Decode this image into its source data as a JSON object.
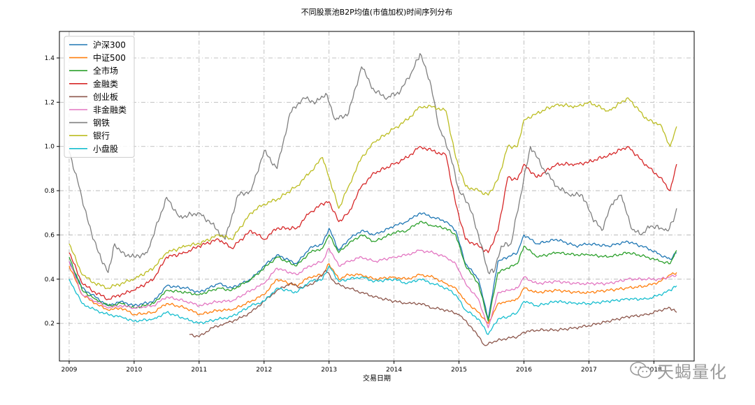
{
  "chart_data": {
    "type": "line",
    "title": "不同股票池B2P均值(市值加权)时间序列分布",
    "xlabel": "交易日期",
    "ylabel": "",
    "xlim": [
      2008.85,
      2018.62
    ],
    "ylim": [
      0.03,
      1.52
    ],
    "x_ticks": [
      "2009",
      "2010",
      "2011",
      "2012",
      "2013",
      "2014",
      "2015",
      "2016",
      "2017",
      "2018"
    ],
    "y_ticks": [
      "0.2",
      "0.4",
      "0.6",
      "0.8",
      "1.0",
      "1.2",
      "1.4"
    ],
    "grid": true,
    "legend_position": "upper left",
    "series": [
      {
        "name": "沪深300",
        "color": "#1f77b4",
        "x": [
          2009.0,
          2009.2,
          2009.4,
          2009.6,
          2009.8,
          2010.0,
          2010.3,
          2010.5,
          2010.8,
          2011.0,
          2011.3,
          2011.5,
          2011.8,
          2012.0,
          2012.2,
          2012.5,
          2012.7,
          2012.9,
          2013.0,
          2013.15,
          2013.3,
          2013.5,
          2013.7,
          2014.0,
          2014.2,
          2014.4,
          2014.6,
          2014.8,
          2014.95,
          2015.1,
          2015.3,
          2015.45,
          2015.6,
          2015.75,
          2015.9,
          2016.0,
          2016.2,
          2016.5,
          2016.8,
          2017.0,
          2017.3,
          2017.6,
          2017.9,
          2018.1,
          2018.25,
          2018.35
        ],
        "values": [
          0.48,
          0.36,
          0.32,
          0.28,
          0.3,
          0.28,
          0.3,
          0.37,
          0.36,
          0.34,
          0.38,
          0.36,
          0.4,
          0.46,
          0.51,
          0.47,
          0.54,
          0.56,
          0.63,
          0.53,
          0.58,
          0.62,
          0.6,
          0.64,
          0.66,
          0.7,
          0.68,
          0.66,
          0.62,
          0.47,
          0.4,
          0.22,
          0.48,
          0.5,
          0.52,
          0.6,
          0.56,
          0.58,
          0.55,
          0.56,
          0.55,
          0.57,
          0.54,
          0.51,
          0.49,
          0.52
        ]
      },
      {
        "name": "中证500",
        "color": "#ff7f0e",
        "x": [
          2009.0,
          2009.2,
          2009.4,
          2009.6,
          2009.8,
          2010.0,
          2010.3,
          2010.5,
          2010.8,
          2011.0,
          2011.3,
          2011.5,
          2011.8,
          2012.0,
          2012.2,
          2012.5,
          2012.7,
          2012.9,
          2013.0,
          2013.15,
          2013.3,
          2013.5,
          2013.7,
          2014.0,
          2014.2,
          2014.4,
          2014.6,
          2014.8,
          2014.95,
          2015.1,
          2015.3,
          2015.45,
          2015.6,
          2015.75,
          2015.9,
          2016.0,
          2016.2,
          2016.5,
          2016.8,
          2017.0,
          2017.3,
          2017.6,
          2017.9,
          2018.1,
          2018.25,
          2018.35
        ],
        "values": [
          0.46,
          0.33,
          0.29,
          0.26,
          0.27,
          0.24,
          0.25,
          0.29,
          0.27,
          0.24,
          0.26,
          0.26,
          0.3,
          0.33,
          0.4,
          0.37,
          0.41,
          0.42,
          0.47,
          0.4,
          0.42,
          0.42,
          0.4,
          0.41,
          0.4,
          0.42,
          0.41,
          0.38,
          0.36,
          0.3,
          0.25,
          0.2,
          0.29,
          0.3,
          0.31,
          0.36,
          0.34,
          0.35,
          0.34,
          0.34,
          0.35,
          0.36,
          0.37,
          0.39,
          0.42,
          0.43
        ]
      },
      {
        "name": "全市场",
        "color": "#2ca02c",
        "x": [
          2009.0,
          2009.2,
          2009.4,
          2009.6,
          2009.8,
          2010.0,
          2010.3,
          2010.5,
          2010.8,
          2011.0,
          2011.3,
          2011.5,
          2011.8,
          2012.0,
          2012.2,
          2012.5,
          2012.7,
          2012.9,
          2013.0,
          2013.15,
          2013.3,
          2013.5,
          2013.7,
          2014.0,
          2014.2,
          2014.4,
          2014.6,
          2014.8,
          2014.95,
          2015.1,
          2015.3,
          2015.45,
          2015.6,
          2015.75,
          2015.9,
          2016.0,
          2016.2,
          2016.5,
          2016.8,
          2017.0,
          2017.3,
          2017.6,
          2017.9,
          2018.1,
          2018.25,
          2018.35
        ],
        "values": [
          0.5,
          0.35,
          0.31,
          0.28,
          0.29,
          0.27,
          0.29,
          0.35,
          0.34,
          0.33,
          0.36,
          0.35,
          0.4,
          0.45,
          0.5,
          0.46,
          0.52,
          0.54,
          0.6,
          0.52,
          0.56,
          0.6,
          0.57,
          0.61,
          0.62,
          0.66,
          0.64,
          0.63,
          0.6,
          0.46,
          0.38,
          0.21,
          0.43,
          0.45,
          0.47,
          0.55,
          0.5,
          0.52,
          0.51,
          0.51,
          0.5,
          0.52,
          0.5,
          0.48,
          0.47,
          0.53
        ]
      },
      {
        "name": "金融类",
        "color": "#d62728",
        "x": [
          2009.0,
          2009.2,
          2009.4,
          2009.6,
          2009.8,
          2010.0,
          2010.3,
          2010.5,
          2010.8,
          2011.0,
          2011.3,
          2011.5,
          2011.8,
          2012.0,
          2012.2,
          2012.5,
          2012.7,
          2012.9,
          2013.0,
          2013.15,
          2013.3,
          2013.5,
          2013.7,
          2014.0,
          2014.2,
          2014.4,
          2014.6,
          2014.8,
          2014.95,
          2015.1,
          2015.3,
          2015.45,
          2015.6,
          2015.75,
          2015.9,
          2016.0,
          2016.2,
          2016.5,
          2016.8,
          2017.0,
          2017.3,
          2017.6,
          2017.9,
          2018.1,
          2018.25,
          2018.35
        ],
        "values": [
          0.52,
          0.38,
          0.34,
          0.31,
          0.33,
          0.35,
          0.4,
          0.5,
          0.52,
          0.55,
          0.58,
          0.54,
          0.62,
          0.58,
          0.63,
          0.63,
          0.7,
          0.74,
          0.75,
          0.66,
          0.7,
          0.82,
          0.88,
          0.92,
          0.95,
          1.0,
          0.98,
          0.96,
          0.74,
          0.58,
          0.55,
          0.52,
          0.62,
          0.86,
          0.85,
          0.92,
          0.86,
          0.92,
          0.92,
          0.93,
          0.96,
          1.0,
          0.91,
          0.86,
          0.8,
          0.92
        ]
      },
      {
        "name": "创业板",
        "color": "#8c564b",
        "x": [
          2010.85,
          2011.0,
          2011.2,
          2011.4,
          2011.6,
          2011.8,
          2012.0,
          2012.2,
          2012.4,
          2012.6,
          2012.8,
          2012.95,
          2013.1,
          2013.3,
          2013.5,
          2013.7,
          2014.0,
          2014.2,
          2014.4,
          2014.6,
          2014.8,
          2015.0,
          2015.2,
          2015.4,
          2015.55,
          2015.7,
          2015.9,
          2016.0,
          2016.2,
          2016.5,
          2016.8,
          2017.0,
          2017.3,
          2017.6,
          2017.9,
          2018.1,
          2018.25,
          2018.35
        ],
        "values": [
          0.15,
          0.14,
          0.18,
          0.2,
          0.22,
          0.25,
          0.3,
          0.35,
          0.38,
          0.36,
          0.39,
          0.44,
          0.38,
          0.36,
          0.34,
          0.32,
          0.3,
          0.29,
          0.29,
          0.27,
          0.26,
          0.24,
          0.18,
          0.1,
          0.12,
          0.13,
          0.14,
          0.16,
          0.17,
          0.17,
          0.18,
          0.19,
          0.21,
          0.23,
          0.24,
          0.26,
          0.27,
          0.25
        ]
      },
      {
        "name": "非金融类",
        "color": "#e377c2",
        "x": [
          2009.0,
          2009.2,
          2009.4,
          2009.6,
          2009.8,
          2010.0,
          2010.3,
          2010.5,
          2010.8,
          2011.0,
          2011.3,
          2011.5,
          2011.8,
          2012.0,
          2012.2,
          2012.5,
          2012.7,
          2012.9,
          2013.0,
          2013.15,
          2013.3,
          2013.5,
          2013.7,
          2014.0,
          2014.2,
          2014.4,
          2014.6,
          2014.8,
          2014.95,
          2015.1,
          2015.3,
          2015.45,
          2015.6,
          2015.75,
          2015.9,
          2016.0,
          2016.2,
          2016.5,
          2016.8,
          2017.0,
          2017.3,
          2017.6,
          2017.9,
          2018.1,
          2018.25,
          2018.35
        ],
        "values": [
          0.48,
          0.33,
          0.3,
          0.27,
          0.28,
          0.27,
          0.28,
          0.32,
          0.3,
          0.28,
          0.3,
          0.3,
          0.35,
          0.38,
          0.45,
          0.42,
          0.46,
          0.48,
          0.54,
          0.46,
          0.48,
          0.5,
          0.48,
          0.5,
          0.51,
          0.53,
          0.52,
          0.5,
          0.47,
          0.38,
          0.31,
          0.18,
          0.34,
          0.35,
          0.36,
          0.41,
          0.38,
          0.39,
          0.38,
          0.38,
          0.38,
          0.4,
          0.4,
          0.4,
          0.41,
          0.42
        ]
      },
      {
        "name": "钢铁",
        "color": "#7f7f7f",
        "x": [
          2009.0,
          2009.15,
          2009.3,
          2009.45,
          2009.6,
          2009.7,
          2009.8,
          2010.0,
          2010.2,
          2010.5,
          2010.7,
          2011.0,
          2011.2,
          2011.4,
          2011.6,
          2011.8,
          2012.0,
          2012.2,
          2012.4,
          2012.6,
          2012.8,
          2012.95,
          2013.1,
          2013.3,
          2013.5,
          2013.7,
          2013.9,
          2014.1,
          2014.3,
          2014.4,
          2014.55,
          2014.7,
          2014.85,
          2015.0,
          2015.15,
          2015.3,
          2015.45,
          2015.55,
          2015.65,
          2015.8,
          2015.95,
          2016.1,
          2016.3,
          2016.5,
          2016.7,
          2016.9,
          2017.05,
          2017.2,
          2017.35,
          2017.5,
          2017.65,
          2017.8,
          2017.95,
          2018.1,
          2018.2,
          2018.3,
          2018.35
        ],
        "values": [
          0.98,
          0.82,
          0.65,
          0.52,
          0.43,
          0.56,
          0.52,
          0.5,
          0.52,
          0.77,
          0.68,
          0.7,
          0.65,
          0.58,
          0.78,
          0.8,
          0.98,
          0.9,
          1.15,
          1.22,
          1.2,
          1.24,
          1.12,
          1.15,
          1.36,
          1.25,
          1.22,
          1.25,
          1.35,
          1.42,
          1.3,
          1.08,
          0.98,
          0.8,
          0.74,
          0.6,
          0.43,
          0.44,
          0.55,
          0.56,
          0.78,
          1.0,
          0.9,
          0.82,
          0.78,
          0.78,
          0.68,
          0.62,
          0.74,
          0.78,
          0.63,
          0.6,
          0.64,
          0.63,
          0.62,
          0.66,
          0.72
        ]
      },
      {
        "name": "银行",
        "color": "#bcbd22",
        "x": [
          2009.0,
          2009.2,
          2009.4,
          2009.6,
          2009.8,
          2010.0,
          2010.3,
          2010.5,
          2010.8,
          2011.0,
          2011.3,
          2011.5,
          2011.8,
          2012.0,
          2012.2,
          2012.5,
          2012.7,
          2012.9,
          2013.0,
          2013.15,
          2013.3,
          2013.5,
          2013.7,
          2014.0,
          2014.2,
          2014.4,
          2014.6,
          2014.8,
          2014.95,
          2015.1,
          2015.3,
          2015.45,
          2015.6,
          2015.75,
          2015.9,
          2016.0,
          2016.2,
          2016.5,
          2016.8,
          2017.0,
          2017.3,
          2017.6,
          2017.9,
          2018.1,
          2018.25,
          2018.35
        ],
        "values": [
          0.56,
          0.42,
          0.38,
          0.36,
          0.38,
          0.4,
          0.45,
          0.52,
          0.55,
          0.56,
          0.6,
          0.58,
          0.7,
          0.74,
          0.76,
          0.82,
          0.88,
          0.95,
          0.86,
          0.72,
          0.82,
          0.95,
          1.02,
          1.08,
          1.12,
          1.18,
          1.18,
          1.16,
          0.95,
          0.82,
          0.8,
          0.78,
          0.85,
          1.0,
          1.0,
          1.12,
          1.15,
          1.19,
          1.18,
          1.2,
          1.16,
          1.22,
          1.12,
          1.1,
          1.0,
          1.09
        ]
      },
      {
        "name": "小盘股",
        "color": "#17becf",
        "x": [
          2009.0,
          2009.2,
          2009.4,
          2009.6,
          2009.8,
          2010.0,
          2010.3,
          2010.5,
          2010.8,
          2011.0,
          2011.3,
          2011.5,
          2011.8,
          2012.0,
          2012.2,
          2012.5,
          2012.7,
          2012.9,
          2013.0,
          2013.15,
          2013.3,
          2013.5,
          2013.7,
          2014.0,
          2014.2,
          2014.4,
          2014.6,
          2014.8,
          2014.95,
          2015.1,
          2015.3,
          2015.45,
          2015.6,
          2015.75,
          2015.9,
          2016.0,
          2016.2,
          2016.5,
          2016.8,
          2017.0,
          2017.3,
          2017.6,
          2017.9,
          2018.1,
          2018.25,
          2018.35
        ],
        "values": [
          0.4,
          0.29,
          0.26,
          0.24,
          0.23,
          0.21,
          0.22,
          0.25,
          0.22,
          0.2,
          0.22,
          0.23,
          0.28,
          0.3,
          0.36,
          0.34,
          0.39,
          0.4,
          0.46,
          0.39,
          0.4,
          0.41,
          0.39,
          0.4,
          0.38,
          0.4,
          0.38,
          0.36,
          0.33,
          0.26,
          0.22,
          0.15,
          0.22,
          0.23,
          0.25,
          0.3,
          0.28,
          0.3,
          0.29,
          0.29,
          0.3,
          0.31,
          0.31,
          0.33,
          0.35,
          0.37
        ]
      }
    ]
  },
  "watermark": {
    "icon": "wechat-icon",
    "text": "天蝎量化"
  }
}
